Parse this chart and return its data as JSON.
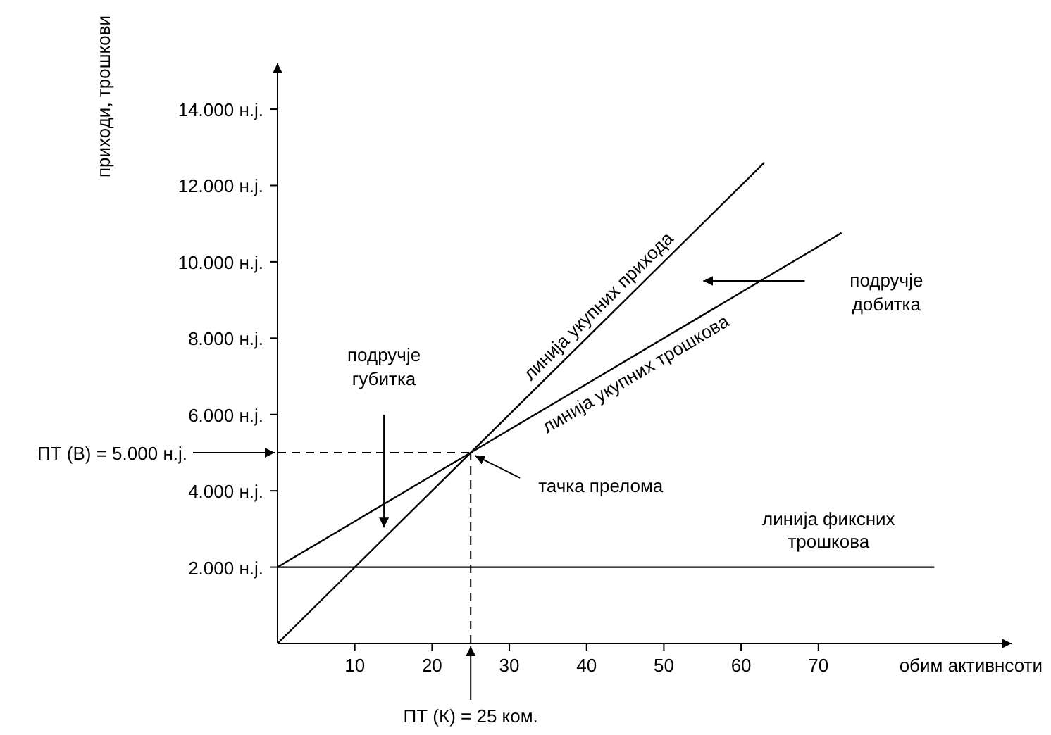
{
  "chart_data": {
    "type": "line",
    "xlabel": "обим активнсоти",
    "ylabel": "приходи, трошкови",
    "xlim": [
      0,
      95
    ],
    "ylim": [
      0,
      15200
    ],
    "xticks": [
      10,
      20,
      30,
      40,
      50,
      60,
      70
    ],
    "yticks": [
      {
        "value": 2000,
        "label": "2.000 н.ј."
      },
      {
        "value": 4000,
        "label": "4.000 н.ј."
      },
      {
        "value": 6000,
        "label": "6.000 н.ј."
      },
      {
        "value": 8000,
        "label": "8.000 н.ј."
      },
      {
        "value": 10000,
        "label": "10.000 н.ј."
      },
      {
        "value": 12000,
        "label": "12.000 н.ј."
      },
      {
        "value": 14000,
        "label": "14.000 н.ј."
      }
    ],
    "series": [
      {
        "name": "линија укупних прихода",
        "color": "#000000",
        "x": [
          0,
          63
        ],
        "values": [
          0,
          12600
        ]
      },
      {
        "name": "линија укупних трошкова",
        "color": "#000000",
        "x": [
          0,
          73
        ],
        "values": [
          2000,
          10760
        ]
      },
      {
        "name": "линија фиксних трошкова",
        "color": "#000000",
        "x": [
          0,
          85
        ],
        "values": [
          2000,
          2000
        ]
      }
    ],
    "ref_lines": [
      {
        "axis": "y",
        "value": 5000,
        "label": "ПТ (В) = 5.000 н.ј.",
        "line_style": "dashed"
      },
      {
        "axis": "x",
        "value": 25,
        "label": "ПТ (К) = 25 ком.",
        "line_style": "dashed"
      }
    ],
    "annotations": [
      "подручје губитка",
      "подручје добитка",
      {
        "text": "тачка прелома",
        "x": 25,
        "y": 5000
      }
    ],
    "grid": false,
    "legend": false,
    "marker": "none",
    "line_style": "solid"
  }
}
